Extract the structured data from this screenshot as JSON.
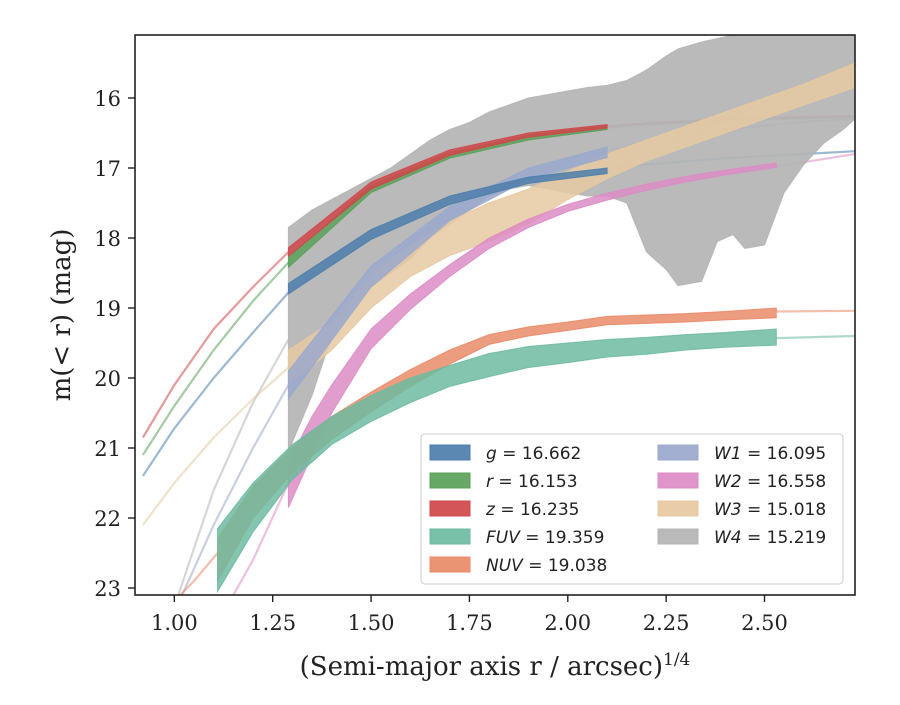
{
  "chart_data": {
    "type": "line",
    "xlabel": "(Semi-major axis r / arcsec)",
    "xlabel_sup": "1/4",
    "ylabel": "m(< r) (mag)",
    "xlim": [
      0.9,
      2.73
    ],
    "ylim": [
      23.1,
      15.1
    ],
    "y_inverted": true,
    "grid": false,
    "legend_position": "lower-right",
    "x_ticks": [
      "1.00",
      "1.25",
      "1.50",
      "1.75",
      "2.00",
      "2.25",
      "2.50"
    ],
    "y_ticks": [
      "16",
      "17",
      "18",
      "19",
      "20",
      "21",
      "22",
      "23"
    ],
    "series": [
      {
        "name": "g = 16.662",
        "legend_var": "g",
        "legend_val": "= 16.662",
        "color": "#4c7eab",
        "fit": [
          [
            0.92,
            21.4
          ],
          [
            1.0,
            20.72
          ],
          [
            1.1,
            20.0
          ],
          [
            1.2,
            19.35
          ],
          [
            1.29,
            18.78
          ],
          [
            1.4,
            18.32
          ],
          [
            1.5,
            17.95
          ],
          [
            1.6,
            17.67
          ],
          [
            1.7,
            17.45
          ],
          [
            1.8,
            17.28
          ],
          [
            1.9,
            17.16
          ],
          [
            2.0,
            17.07
          ],
          [
            2.2,
            16.95
          ],
          [
            2.4,
            16.86
          ],
          [
            2.6,
            16.8
          ],
          [
            2.73,
            16.76
          ]
        ],
        "band": [
          [
            1.29,
            18.65,
            18.8
          ],
          [
            1.5,
            17.88,
            18.02
          ],
          [
            1.7,
            17.4,
            17.52
          ],
          [
            1.9,
            17.13,
            17.22
          ],
          [
            2.1,
            17.0,
            17.08
          ]
        ]
      },
      {
        "name": "r = 16.153",
        "legend_var": "r",
        "legend_val": "= 16.153",
        "color": "#5aa15a",
        "fit": [
          [
            0.92,
            21.1
          ],
          [
            1.0,
            20.4
          ],
          [
            1.1,
            19.6
          ],
          [
            1.2,
            18.9
          ],
          [
            1.29,
            18.35
          ],
          [
            1.4,
            17.75
          ],
          [
            1.5,
            17.3
          ],
          [
            1.6,
            17.0
          ],
          [
            1.7,
            16.82
          ],
          [
            1.8,
            16.68
          ],
          [
            1.9,
            16.56
          ],
          [
            2.0,
            16.47
          ],
          [
            2.2,
            16.38
          ],
          [
            2.4,
            16.32
          ],
          [
            2.6,
            16.29
          ],
          [
            2.73,
            16.27
          ]
        ],
        "band": [
          [
            1.29,
            18.28,
            18.42
          ],
          [
            1.5,
            17.25,
            17.35
          ],
          [
            1.7,
            16.78,
            16.86
          ],
          [
            1.9,
            16.53,
            16.6
          ],
          [
            2.1,
            16.4,
            16.45
          ]
        ]
      },
      {
        "name": "z = 16.235",
        "legend_var": "z",
        "legend_val": "= 16.235",
        "color": "#d0474a",
        "fit": [
          [
            0.92,
            20.85
          ],
          [
            1.0,
            20.1
          ],
          [
            1.1,
            19.3
          ],
          [
            1.2,
            18.7
          ],
          [
            1.29,
            18.2
          ],
          [
            1.4,
            17.65
          ],
          [
            1.5,
            17.25
          ],
          [
            1.6,
            16.98
          ],
          [
            1.7,
            16.78
          ],
          [
            1.8,
            16.64
          ],
          [
            1.9,
            16.53
          ],
          [
            2.0,
            16.45
          ],
          [
            2.2,
            16.36
          ],
          [
            2.4,
            16.3
          ],
          [
            2.6,
            16.27
          ],
          [
            2.73,
            16.26
          ]
        ],
        "band": [
          [
            1.29,
            18.14,
            18.26
          ],
          [
            1.5,
            17.2,
            17.3
          ],
          [
            1.7,
            16.74,
            16.82
          ],
          [
            1.9,
            16.5,
            16.56
          ],
          [
            2.1,
            16.38,
            16.43
          ]
        ]
      },
      {
        "name": "FUV = 19.359",
        "legend_var": "FUV",
        "legend_val": "= 19.359",
        "color": "#6dbba0",
        "fit": [
          [
            2.53,
            19.43
          ],
          [
            2.73,
            19.4
          ]
        ],
        "band": [
          [
            1.11,
            22.15,
            23.05
          ],
          [
            1.2,
            21.5,
            22.2
          ],
          [
            1.3,
            20.95,
            21.45
          ],
          [
            1.4,
            20.55,
            20.95
          ],
          [
            1.5,
            20.25,
            20.62
          ],
          [
            1.6,
            20.0,
            20.35
          ],
          [
            1.7,
            19.82,
            20.12
          ],
          [
            1.8,
            19.65,
            19.98
          ],
          [
            1.9,
            19.55,
            19.85
          ],
          [
            2.0,
            19.5,
            19.78
          ],
          [
            2.1,
            19.45,
            19.7
          ],
          [
            2.2,
            19.42,
            19.66
          ],
          [
            2.3,
            19.38,
            19.6
          ],
          [
            2.4,
            19.35,
            19.56
          ],
          [
            2.53,
            19.3,
            19.53
          ]
        ]
      },
      {
        "name": "NUV = 19.038",
        "legend_var": "NUV",
        "legend_val": "= 19.038",
        "color": "#e98b68",
        "fit": [
          [
            0.98,
            23.3
          ],
          [
            1.05,
            22.9
          ],
          [
            1.11,
            22.5
          ],
          [
            2.53,
            19.05
          ],
          [
            2.73,
            19.04
          ]
        ],
        "band": [
          [
            1.11,
            22.3,
            22.9
          ],
          [
            1.2,
            21.55,
            22.0
          ],
          [
            1.3,
            20.98,
            21.35
          ],
          [
            1.4,
            20.55,
            20.88
          ],
          [
            1.5,
            20.2,
            20.48
          ],
          [
            1.6,
            19.88,
            20.12
          ],
          [
            1.7,
            19.6,
            19.8
          ],
          [
            1.8,
            19.38,
            19.52
          ],
          [
            1.9,
            19.27,
            19.4
          ],
          [
            2.0,
            19.2,
            19.32
          ],
          [
            2.1,
            19.12,
            19.24
          ],
          [
            2.2,
            19.1,
            19.22
          ],
          [
            2.3,
            19.08,
            19.2
          ],
          [
            2.4,
            19.05,
            19.17
          ],
          [
            2.53,
            19.0,
            19.14
          ]
        ]
      },
      {
        "name": "W1 = 16.095",
        "legend_var": "W1",
        "legend_val": "= 16.095",
        "color": "#9aa8cc",
        "fit": [
          [
            1.02,
            23.1
          ],
          [
            1.1,
            22.1
          ],
          [
            1.2,
            21.0
          ],
          [
            1.29,
            20.1
          ],
          [
            1.4,
            19.2
          ],
          [
            1.5,
            18.55
          ],
          [
            1.6,
            18.05
          ],
          [
            1.7,
            17.65
          ],
          [
            1.8,
            17.35
          ],
          [
            1.9,
            17.08
          ],
          [
            2.0,
            16.88
          ],
          [
            2.2,
            16.62
          ],
          [
            2.4,
            16.45
          ],
          [
            2.6,
            16.34
          ],
          [
            2.73,
            16.3
          ]
        ],
        "band": [
          [
            1.29,
            19.9,
            20.3
          ],
          [
            1.5,
            18.4,
            18.7
          ],
          [
            1.7,
            17.55,
            17.75
          ],
          [
            1.9,
            17.0,
            17.16
          ],
          [
            2.1,
            16.7,
            16.85
          ]
        ]
      },
      {
        "name": "W2 = 16.558",
        "legend_var": "W2",
        "legend_val": "= 16.558",
        "color": "#dc8cc4",
        "fit": [
          [
            1.15,
            23.1
          ],
          [
            1.2,
            22.6
          ],
          [
            1.29,
            21.5
          ],
          [
            2.53,
            16.98
          ],
          [
            2.73,
            16.8
          ]
        ],
        "band": [
          [
            1.29,
            21.2,
            21.85
          ],
          [
            1.35,
            20.55,
            21.1
          ],
          [
            1.4,
            20.1,
            20.5
          ],
          [
            1.5,
            19.3,
            19.58
          ],
          [
            1.6,
            18.8,
            19.02
          ],
          [
            1.7,
            18.38,
            18.55
          ],
          [
            1.8,
            18.0,
            18.15
          ],
          [
            1.9,
            17.73,
            17.85
          ],
          [
            2.0,
            17.52,
            17.62
          ],
          [
            2.1,
            17.36,
            17.46
          ],
          [
            2.2,
            17.23,
            17.32
          ],
          [
            2.3,
            17.12,
            17.2
          ],
          [
            2.4,
            17.03,
            17.1
          ],
          [
            2.53,
            16.93,
            16.99
          ]
        ]
      },
      {
        "name": "W3 = 15.018",
        "legend_var": "W3",
        "legend_val": "= 15.018",
        "color": "#e6c9a1",
        "fit": [
          [
            0.92,
            22.1
          ],
          [
            1.0,
            21.5
          ],
          [
            1.1,
            20.85
          ],
          [
            1.2,
            20.3
          ],
          [
            1.29,
            19.85
          ],
          [
            2.0,
            17.3
          ],
          [
            2.2,
            16.8
          ],
          [
            2.4,
            16.3
          ],
          [
            2.6,
            15.85
          ],
          [
            2.73,
            15.6
          ]
        ],
        "band": [
          [
            1.29,
            19.6,
            20.1
          ],
          [
            1.4,
            19.2,
            19.6
          ],
          [
            1.5,
            18.5,
            19.0
          ],
          [
            1.6,
            18.1,
            18.55
          ],
          [
            1.7,
            17.75,
            18.25
          ],
          [
            1.8,
            17.5,
            18.05
          ],
          [
            1.9,
            17.3,
            17.8
          ],
          [
            2.0,
            17.05,
            17.45
          ],
          [
            2.1,
            16.8,
            17.15
          ],
          [
            2.2,
            16.6,
            16.9
          ],
          [
            2.3,
            16.4,
            16.7
          ],
          [
            2.4,
            16.2,
            16.5
          ],
          [
            2.5,
            16.0,
            16.3
          ],
          [
            2.6,
            15.8,
            16.1
          ],
          [
            2.73,
            15.5,
            15.85
          ]
        ]
      },
      {
        "name": "W4 = 15.219",
        "legend_var": "W4",
        "legend_val": "= 15.219",
        "color": "#b4b4b4",
        "fit": [
          [
            1.01,
            23.1
          ],
          [
            1.1,
            21.6
          ],
          [
            1.2,
            20.35
          ],
          [
            1.29,
            19.45
          ]
        ],
        "band": [
          [
            1.29,
            17.85,
            21.05
          ],
          [
            1.35,
            17.6,
            20.25
          ],
          [
            1.4,
            17.45,
            19.4
          ],
          [
            1.45,
            17.3,
            19.0
          ],
          [
            1.5,
            17.15,
            18.7
          ],
          [
            1.55,
            17.0,
            18.5
          ],
          [
            1.6,
            16.8,
            18.3
          ],
          [
            1.65,
            16.6,
            18.0
          ],
          [
            1.7,
            16.45,
            17.8
          ],
          [
            1.75,
            16.35,
            17.6
          ],
          [
            1.8,
            16.2,
            17.4
          ],
          [
            1.85,
            16.1,
            17.3
          ],
          [
            1.9,
            16.0,
            17.25
          ],
          [
            1.95,
            15.95,
            17.3
          ],
          [
            2.0,
            15.9,
            17.35
          ],
          [
            2.05,
            15.85,
            17.4
          ],
          [
            2.1,
            15.82,
            17.4
          ],
          [
            2.15,
            15.75,
            17.5
          ],
          [
            2.2,
            15.6,
            18.2
          ],
          [
            2.25,
            15.4,
            18.45
          ],
          [
            2.28,
            15.3,
            18.68
          ],
          [
            2.34,
            15.2,
            18.62
          ],
          [
            2.38,
            15.15,
            18.05
          ],
          [
            2.42,
            15.1,
            17.95
          ],
          [
            2.45,
            15.1,
            18.15
          ],
          [
            2.5,
            15.1,
            18.1
          ],
          [
            2.55,
            15.1,
            17.35
          ],
          [
            2.6,
            15.1,
            16.95
          ],
          [
            2.65,
            15.1,
            16.65
          ],
          [
            2.7,
            15.1,
            16.45
          ],
          [
            2.73,
            15.1,
            16.3
          ]
        ]
      }
    ]
  }
}
